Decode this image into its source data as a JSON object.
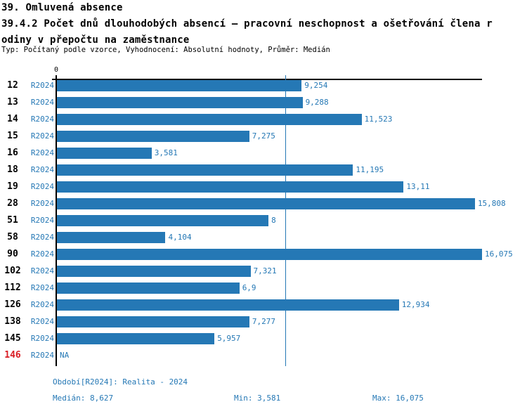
{
  "header": {
    "title": "39. Omluvená absence",
    "subtitle_line1": "39.4.2 Počet dnů dlouhodobých absencí – pracovní neschopnost a ošetřování člena r",
    "subtitle_line2": "odiny v přepočtu na zaměstnance",
    "meta": "Typ: Počítaný podle vzorce, Vyhodnocení: Absolutní hodnoty, Průměr: Medián"
  },
  "chart_data": {
    "type": "bar",
    "orientation": "horizontal",
    "title": "39.4.2 Počet dnů dlouhodobých absencí – pracovní neschopnost a ošetřování člena rodiny v přepočtu na zaměstnance",
    "series_label": "R2024",
    "axis": {
      "zero_label": "0",
      "min": 0,
      "max": 16.075,
      "median": 8.627
    },
    "rows": [
      {
        "category": "12",
        "value": 9.254,
        "display": "9,254",
        "highlight": false
      },
      {
        "category": "13",
        "value": 9.288,
        "display": "9,288",
        "highlight": false
      },
      {
        "category": "14",
        "value": 11.523,
        "display": "11,523",
        "highlight": false
      },
      {
        "category": "15",
        "value": 7.275,
        "display": "7,275",
        "highlight": false
      },
      {
        "category": "16",
        "value": 3.581,
        "display": "3,581",
        "highlight": false
      },
      {
        "category": "18",
        "value": 11.195,
        "display": "11,195",
        "highlight": false
      },
      {
        "category": "19",
        "value": 13.11,
        "display": "13,11",
        "highlight": false
      },
      {
        "category": "28",
        "value": 15.808,
        "display": "15,808",
        "highlight": false
      },
      {
        "category": "51",
        "value": 8,
        "display": "8",
        "highlight": false
      },
      {
        "category": "58",
        "value": 4.104,
        "display": "4,104",
        "highlight": false
      },
      {
        "category": "90",
        "value": 16.075,
        "display": "16,075",
        "highlight": false
      },
      {
        "category": "102",
        "value": 7.321,
        "display": "7,321",
        "highlight": false
      },
      {
        "category": "112",
        "value": 6.9,
        "display": "6,9",
        "highlight": false
      },
      {
        "category": "126",
        "value": 12.934,
        "display": "12,934",
        "highlight": false
      },
      {
        "category": "138",
        "value": 7.277,
        "display": "7,277",
        "highlight": false
      },
      {
        "category": "145",
        "value": 5.957,
        "display": "5,957",
        "highlight": false
      },
      {
        "category": "146",
        "value": null,
        "display": "NA",
        "highlight": true
      }
    ],
    "colors": {
      "bar": "#2578b5",
      "accent_text": "#2578b5",
      "highlight_red": "#d91d24",
      "axis_black": "#000000"
    },
    "legend": null,
    "grid": "median-line-only"
  },
  "footer": {
    "period": "Období[R2024]: Realita - 2024",
    "median": "Medián: 8,627",
    "min": "Min: 3,581",
    "max": "Max: 16,075"
  }
}
